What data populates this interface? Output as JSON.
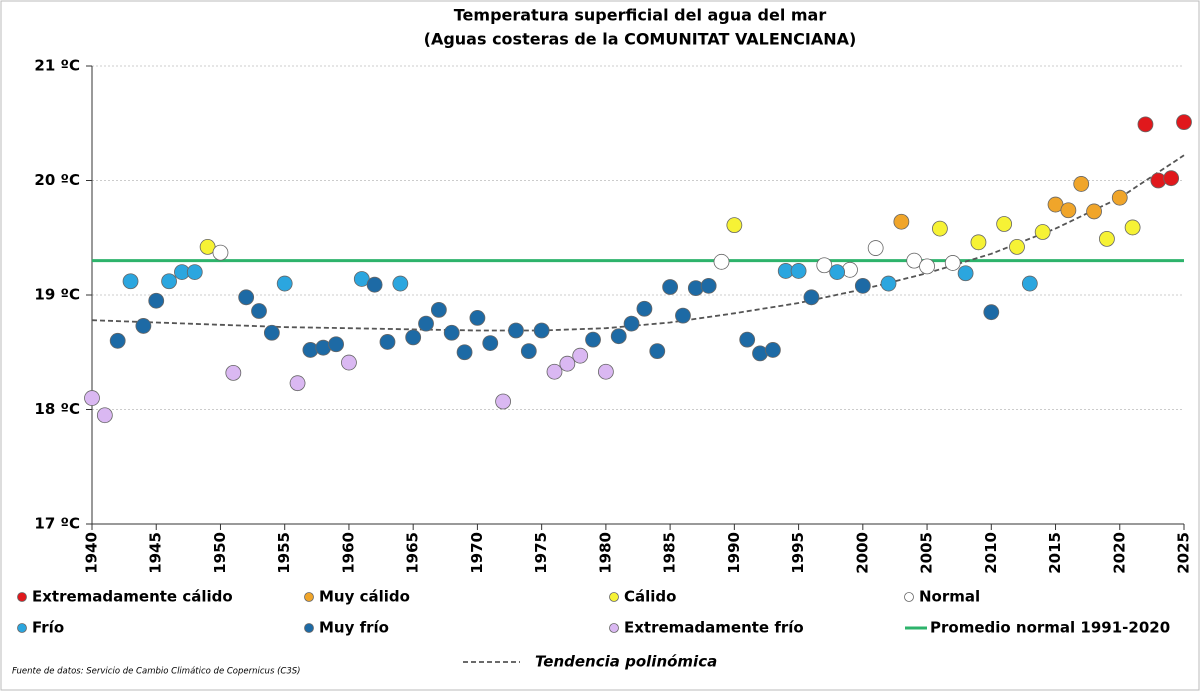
{
  "chart_data": {
    "type": "scatter",
    "title": "Temperatura superficial del agua del mar",
    "subtitle": "(Aguas costeras de la COMUNITAT VALENCIANA)",
    "source": "Fuente de datos: Servicio de Cambio Climático de Copernicus (C3S)",
    "xlim": [
      1940,
      2025
    ],
    "ylim": [
      17,
      21
    ],
    "xticks": [
      1940,
      1945,
      1950,
      1955,
      1960,
      1965,
      1970,
      1975,
      1980,
      1985,
      1990,
      1995,
      2000,
      2005,
      2010,
      2015,
      2020,
      2025
    ],
    "yticks": [
      {
        "value": 17,
        "label": "17 ºC"
      },
      {
        "value": 18,
        "label": "18 ºC"
      },
      {
        "value": 19,
        "label": "19 ºC"
      },
      {
        "value": 20,
        "label": "20 ºC"
      },
      {
        "value": 21,
        "label": "21 ºC"
      }
    ],
    "grid": true,
    "series": [
      {
        "name": "Extremadamente cálido",
        "color": "#e0181c",
        "x": [
          2022,
          2023,
          2024,
          2025
        ],
        "values": [
          20.49,
          20.0,
          20.02,
          20.51
        ]
      },
      {
        "name": "Muy cálido",
        "color": "#f0a52a",
        "x": [
          2003,
          2015,
          2016,
          2017,
          2018,
          2020
        ],
        "values": [
          19.64,
          19.79,
          19.74,
          19.97,
          19.73,
          19.85
        ]
      },
      {
        "name": "Cálido",
        "color": "#f6f235",
        "x": [
          1949,
          1990,
          2006,
          2009,
          2011,
          2012,
          2014,
          2019,
          2021
        ],
        "values": [
          19.42,
          19.61,
          19.58,
          19.46,
          19.62,
          19.42,
          19.55,
          19.49,
          19.59
        ]
      },
      {
        "name": "Normal",
        "color": "#ffffff",
        "x": [
          1950,
          1989,
          1997,
          1999,
          2001,
          2004,
          2005,
          2007
        ],
        "values": [
          19.37,
          19.29,
          19.26,
          19.22,
          19.41,
          19.3,
          19.25,
          19.28
        ]
      },
      {
        "name": "Frío",
        "color": "#2ba6df",
        "x": [
          1943,
          1946,
          1947,
          1948,
          1955,
          1961,
          1964,
          1994,
          1995,
          1998,
          2002,
          2008,
          2013
        ],
        "values": [
          19.12,
          19.12,
          19.2,
          19.2,
          19.1,
          19.14,
          19.1,
          19.21,
          19.21,
          19.2,
          19.1,
          19.19,
          19.1
        ]
      },
      {
        "name": "Muy frío",
        "color": "#1d6aa5",
        "x": [
          1942,
          1944,
          1945,
          1952,
          1953,
          1954,
          1957,
          1958,
          1959,
          1962,
          1963,
          1965,
          1966,
          1967,
          1968,
          1969,
          1970,
          1971,
          1973,
          1974,
          1975,
          1979,
          1981,
          1982,
          1983,
          1984,
          1985,
          1986,
          1987,
          1988,
          1991,
          1992,
          1993,
          1996,
          2000,
          2010
        ],
        "values": [
          18.6,
          18.73,
          18.95,
          18.98,
          18.86,
          18.67,
          18.52,
          18.54,
          18.57,
          19.09,
          18.59,
          18.63,
          18.75,
          18.87,
          18.67,
          18.5,
          18.8,
          18.58,
          18.69,
          18.51,
          18.69,
          18.61,
          18.64,
          18.75,
          18.88,
          18.51,
          19.07,
          18.82,
          19.06,
          19.08,
          18.61,
          18.49,
          18.52,
          18.98,
          19.08,
          18.85
        ]
      },
      {
        "name": "Extremadamente frío",
        "color": "#dab8f2",
        "x": [
          1940,
          1941,
          1951,
          1956,
          1960,
          1972,
          1976,
          1977,
          1978,
          1980
        ],
        "values": [
          18.1,
          17.95,
          18.32,
          18.23,
          18.41,
          18.07,
          18.33,
          18.4,
          18.47,
          18.33
        ]
      }
    ],
    "reference": {
      "name": "Promedio normal 1991-2020",
      "value": 19.3,
      "color": "#2db36b"
    },
    "trend": {
      "name": "Tendencia polinómica",
      "color": "#555555",
      "x": [
        1940,
        1945,
        1950,
        1955,
        1960,
        1965,
        1970,
        1975,
        1980,
        1985,
        1990,
        1995,
        2000,
        2005,
        2010,
        2015,
        2020,
        2025
      ],
      "values": [
        18.78,
        18.76,
        18.74,
        18.72,
        18.71,
        18.7,
        18.69,
        18.69,
        18.71,
        18.76,
        18.84,
        18.93,
        19.05,
        19.19,
        19.36,
        19.58,
        19.85,
        20.22
      ]
    }
  }
}
